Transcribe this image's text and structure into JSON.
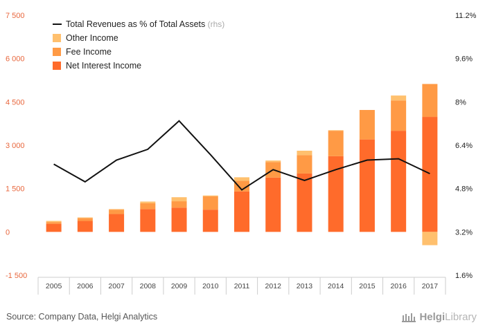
{
  "chart_data": {
    "type": "bar",
    "categories": [
      "2005",
      "2006",
      "2007",
      "2008",
      "2009",
      "2010",
      "2011",
      "2012",
      "2013",
      "2014",
      "2015",
      "2016",
      "2017"
    ],
    "series": [
      {
        "name": "Net Interest Income",
        "kind": "bar",
        "color": "#ff6b2b",
        "values": [
          280,
          380,
          620,
          790,
          840,
          770,
          1400,
          1880,
          2020,
          2620,
          3200,
          3500,
          3980
        ]
      },
      {
        "name": "Fee Income",
        "kind": "bar",
        "color": "#ff9a45",
        "values": [
          60,
          100,
          150,
          200,
          220,
          460,
          370,
          540,
          640,
          880,
          1020,
          1050,
          1140
        ]
      },
      {
        "name": "Other Income",
        "kind": "bar",
        "color": "#ffc06e",
        "values": [
          40,
          20,
          20,
          60,
          140,
          30,
          120,
          50,
          150,
          20,
          0,
          170,
          -460
        ]
      },
      {
        "name": "Total Revenues as % of Total Assets",
        "kind": "line",
        "axis": "right",
        "color": "#111111",
        "values": [
          5.7,
          5.05,
          5.85,
          6.25,
          7.3,
          6.05,
          4.75,
          5.5,
          5.1,
          5.5,
          5.85,
          5.9,
          5.35
        ]
      }
    ],
    "y_left": {
      "ylim": [
        -1500,
        7500
      ],
      "ticks": [
        -1500,
        0,
        1500,
        3000,
        4500,
        6000,
        7500
      ],
      "tick_labels": [
        "-1 500",
        "0",
        "1 500",
        "3 000",
        "4 500",
        "6 000",
        "7 500"
      ]
    },
    "y_right": {
      "ylim": [
        1.6,
        11.2
      ],
      "ticks": [
        1.6,
        3.2,
        4.8,
        6.4,
        8,
        9.6,
        11.2
      ],
      "tick_labels": [
        "1.6%",
        "3.2%",
        "4.8%",
        "6.4%",
        "8%",
        "9.6%",
        "11.2%"
      ]
    },
    "legend": {
      "placement": "top-left",
      "items": [
        {
          "label": "Total Revenues as % of Total Assets",
          "suffix": "(rhs)",
          "marker": "line",
          "color": "#111111"
        },
        {
          "label": "Other Income",
          "marker": "square",
          "color": "#ffc06e"
        },
        {
          "label": "Fee Income",
          "marker": "square",
          "color": "#ff9a45"
        },
        {
          "label": "Net Interest Income",
          "marker": "square",
          "color": "#ff6b2b"
        }
      ]
    },
    "grid": false
  },
  "footer": {
    "source": "Source: Company Data, Helgi Analytics",
    "brand_part1": "Helgi",
    "brand_part2": "Library"
  }
}
